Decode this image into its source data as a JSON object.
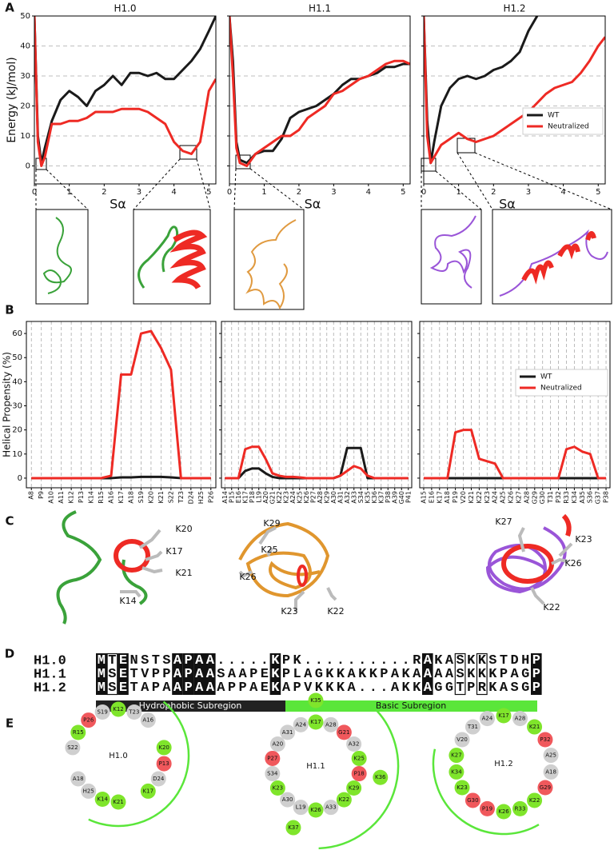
{
  "panel_labels": [
    "A",
    "B",
    "C",
    "D",
    "E"
  ],
  "chart_data": [
    {
      "type": "line",
      "title": "H1.0",
      "xlabel": "Sα",
      "ylabel": "Energy (kJ/mol)",
      "x": [
        0,
        0.1,
        0.2,
        0.3,
        0.5,
        0.75,
        1,
        1.25,
        1.5,
        1.75,
        2,
        2.25,
        2.5,
        2.75,
        3,
        3.25,
        3.5,
        3.75,
        4,
        4.25,
        4.5,
        4.75,
        5,
        5.2
      ],
      "series": [
        {
          "name": "WT",
          "color": "#1a1a1a",
          "values": [
            50,
            10,
            1,
            6,
            15,
            22,
            25,
            23,
            20,
            25,
            27,
            30,
            27,
            31,
            31,
            30,
            31,
            29,
            29,
            32,
            35,
            39,
            45,
            50
          ]
        },
        {
          "name": "Neutralized",
          "color": "#ee2a24",
          "values": [
            50,
            8,
            0,
            3,
            14,
            14,
            15,
            15,
            16,
            18,
            18,
            18,
            19,
            19,
            19,
            18,
            16,
            14,
            8,
            5,
            4,
            8,
            25,
            29
          ]
        }
      ],
      "xlim": [
        0,
        5.2
      ],
      "ylim": [
        -6,
        50
      ],
      "xticks": [
        0,
        1,
        2,
        3,
        4,
        5
      ],
      "yticks": [
        0,
        10,
        20,
        30,
        40,
        50
      ],
      "grid": "y",
      "show_yticklabels": true
    },
    {
      "type": "line",
      "title": "H1.1",
      "xlabel": "Sα",
      "x": [
        0,
        0.1,
        0.2,
        0.3,
        0.5,
        0.75,
        1,
        1.25,
        1.5,
        1.75,
        2,
        2.25,
        2.5,
        2.75,
        3,
        3.25,
        3.5,
        3.75,
        4,
        4.25,
        4.5,
        4.75,
        5,
        5.2
      ],
      "series": [
        {
          "name": "WT",
          "color": "#1a1a1a",
          "values": [
            50,
            35,
            8,
            2,
            1,
            4,
            5,
            5,
            9,
            16,
            18,
            19,
            20,
            22,
            24,
            27,
            29,
            29,
            30,
            31,
            33,
            33,
            34,
            34
          ]
        },
        {
          "name": "Neutralized",
          "color": "#ee2a24",
          "values": [
            50,
            30,
            6,
            1,
            0,
            4,
            6,
            8,
            10,
            10,
            12,
            16,
            18,
            20,
            24,
            25,
            27,
            29,
            30,
            32,
            34,
            35,
            35,
            34
          ]
        }
      ],
      "xlim": [
        0,
        5.2
      ],
      "ylim": [
        -6,
        50
      ],
      "xticks": [
        0,
        1,
        2,
        3,
        4,
        5
      ],
      "yticks": [
        0,
        10,
        20,
        30,
        40,
        50
      ],
      "grid": "y",
      "show_yticklabels": false
    },
    {
      "type": "line",
      "title": "H1.2",
      "xlabel": "Sα",
      "x": [
        0,
        0.1,
        0.2,
        0.3,
        0.5,
        0.75,
        1,
        1.25,
        1.5,
        1.75,
        2,
        2.25,
        2.5,
        2.75,
        3,
        3.25,
        3.5,
        3.75,
        4,
        4.25,
        4.5,
        4.75,
        5,
        5.2
      ],
      "series": [
        {
          "name": "WT",
          "color": "#1a1a1a",
          "values": [
            50,
            15,
            1,
            8,
            20,
            26,
            29,
            30,
            29,
            30,
            32,
            33,
            35,
            38,
            45,
            50,
            null,
            null,
            null,
            null,
            null,
            null,
            null,
            null
          ]
        },
        {
          "name": "Neutralized",
          "color": "#ee2a24",
          "values": [
            50,
            10,
            1,
            3,
            7,
            9,
            11,
            9,
            8,
            9,
            10,
            12,
            14,
            16,
            18,
            21,
            24,
            26,
            27,
            28,
            31,
            35,
            40,
            43
          ]
        }
      ],
      "xlim": [
        0,
        5.2
      ],
      "ylim": [
        -6,
        50
      ],
      "xticks": [
        0,
        1,
        2,
        3,
        4,
        5
      ],
      "yticks": [
        0,
        10,
        20,
        30,
        40,
        50
      ],
      "grid": "y",
      "show_yticklabels": false,
      "legend": "center right"
    },
    {
      "type": "line",
      "ylabel": "Helical Propensity (%)",
      "categories": [
        "A8",
        "P9",
        "A10",
        "A11",
        "K12",
        "P13",
        "K14",
        "R15",
        "A16",
        "K17",
        "A18",
        "S19",
        "K20",
        "K21",
        "S22",
        "T23",
        "D24",
        "H25",
        "P26"
      ],
      "series": [
        {
          "name": "WT",
          "color": "#1a1a1a",
          "values": [
            0,
            0,
            0,
            0,
            0,
            0,
            0,
            0,
            0,
            0.3,
            0.3,
            0.5,
            0.5,
            0.5,
            0.3,
            0,
            0,
            0,
            0
          ]
        },
        {
          "name": "Neutralized",
          "color": "#ee2a24",
          "values": [
            0,
            0,
            0,
            0,
            0,
            0,
            0,
            0,
            1,
            43,
            43,
            60,
            61,
            54,
            45,
            0,
            0,
            0,
            0
          ]
        }
      ],
      "ylim": [
        -4,
        65
      ],
      "yticks": [
        0,
        10,
        20,
        30,
        40,
        50,
        60
      ],
      "grid": "x",
      "show_yticklabels": true
    },
    {
      "type": "line",
      "categories": [
        "A14",
        "P15",
        "E16",
        "K17",
        "P18",
        "L19",
        "A20",
        "G21",
        "K22",
        "K23",
        "A24",
        "K25",
        "K26",
        "P27",
        "A28",
        "K29",
        "A30",
        "A31",
        "A32",
        "A33",
        "S34",
        "K35",
        "K36",
        "K37",
        "P38",
        "A39",
        "G40",
        "P41"
      ],
      "series": [
        {
          "name": "WT",
          "color": "#1a1a1a",
          "values": [
            0,
            0,
            0,
            3,
            4,
            4,
            2,
            0.5,
            0,
            0,
            0,
            0,
            0,
            0,
            0,
            0,
            0,
            1,
            12.5,
            12.5,
            12.5,
            0,
            0,
            0,
            0,
            0,
            0,
            0
          ]
        },
        {
          "name": "Neutralized",
          "color": "#ee2a24",
          "values": [
            0,
            0,
            0,
            12,
            13,
            13,
            8,
            2,
            1,
            0.5,
            0.5,
            0.3,
            0,
            0,
            0,
            0,
            0,
            1,
            3,
            5,
            4,
            1,
            0,
            0,
            0,
            0,
            0,
            0
          ]
        }
      ],
      "ylim": [
        -4,
        65
      ],
      "yticks": [
        0,
        10,
        20,
        30,
        40,
        50,
        60
      ],
      "grid": "x",
      "show_yticklabels": false
    },
    {
      "type": "line",
      "categories": [
        "A15",
        "E16",
        "K17",
        "A18",
        "P19",
        "V20",
        "K21",
        "K22",
        "K23",
        "A24",
        "A25",
        "K26",
        "K27",
        "A28",
        "G29",
        "G30",
        "T31",
        "P32",
        "R33",
        "K34",
        "A35",
        "S36",
        "G37",
        "P38"
      ],
      "series": [
        {
          "name": "WT",
          "color": "#1a1a1a",
          "values": [
            0,
            0,
            0,
            0,
            0,
            0,
            0,
            0,
            0,
            0,
            0,
            0,
            0,
            0,
            0,
            0,
            0,
            0,
            0,
            0,
            0,
            0,
            0,
            0
          ]
        },
        {
          "name": "Neutralized",
          "color": "#ee2a24",
          "values": [
            0,
            0,
            0,
            0,
            19,
            20,
            20,
            8,
            7,
            6,
            0,
            0,
            0,
            0,
            0,
            0,
            0,
            0,
            12,
            13,
            11,
            10,
            0,
            0
          ]
        }
      ],
      "ylim": [
        -4,
        65
      ],
      "yticks": [
        0,
        10,
        20,
        30,
        40,
        50,
        60
      ],
      "grid": "x",
      "show_yticklabels": false,
      "legend": "center right"
    }
  ],
  "structures": [
    {
      "labels": [
        "K20",
        "K17",
        "K21",
        "K14"
      ]
    },
    {
      "labels": [
        "K29",
        "K25",
        "K26",
        "K23",
        "K22"
      ]
    },
    {
      "labels": [
        "K27",
        "K23",
        "K26",
        "K22"
      ]
    }
  ],
  "alignment": {
    "rows": [
      {
        "name": "H1.0",
        "sequence": "MTENSTSAPAA.....KPK..........RAKASKKSTDHP"
      },
      {
        "name": "H1.1",
        "sequence": "MSETVPPAPAASAAPEKPLAGKKAKKPAKAAAASKKKPAGP"
      },
      {
        "name": "H1.2",
        "sequence": "MSETAPAAPAAAPPAEKAPVKKKA...AKKAGGTPRKASGP"
      }
    ],
    "subregions": [
      "Hydrophobic Subregion",
      "Basic Subregion"
    ]
  },
  "wheels": [
    {
      "title": "H1.0",
      "residues": [
        "K12",
        "P13",
        "K14",
        "R15",
        "A16",
        "K17",
        "A18",
        "S19",
        "K20",
        "K21",
        "S22",
        "T23",
        "D24",
        "H25",
        "P26"
      ]
    },
    {
      "title": "H1.1",
      "residues": [
        "K17",
        "P18",
        "L19",
        "A20",
        "G21",
        "K22",
        "K23",
        "A24",
        "K25",
        "K26",
        "P27",
        "A28",
        "K29",
        "A30",
        "A31",
        "A32",
        "A33",
        "S34",
        "K35",
        "K36",
        "K37"
      ]
    },
    {
      "title": "H1.2",
      "residues": [
        "K17",
        "A18",
        "P19",
        "V20",
        "K21",
        "K22",
        "K23",
        "A24",
        "A25",
        "K26",
        "K27",
        "A28",
        "G29",
        "G30",
        "T31",
        "P32",
        "R33",
        "K34"
      ]
    }
  ]
}
